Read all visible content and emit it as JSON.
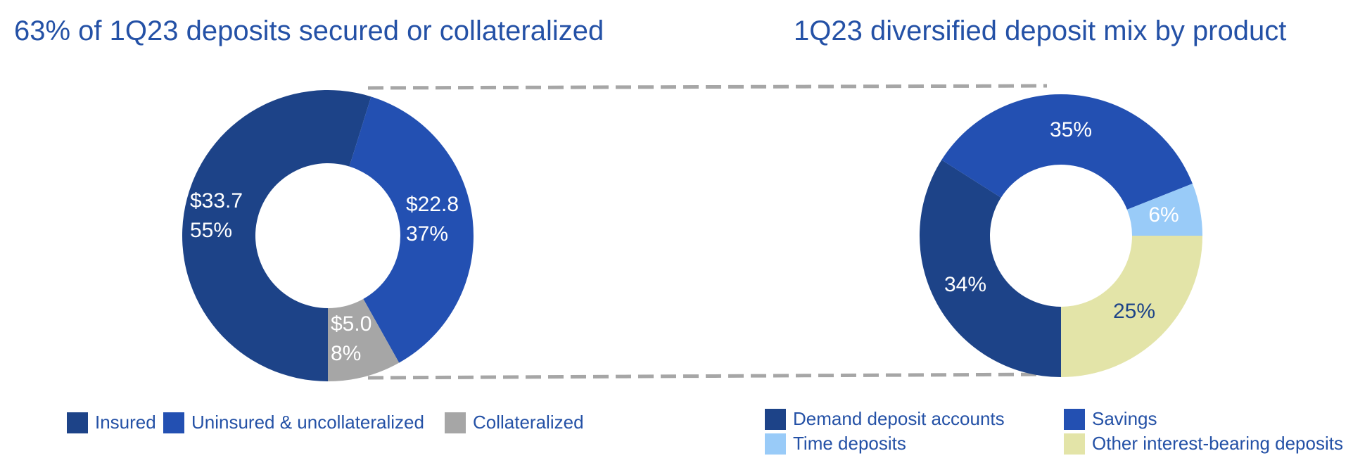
{
  "chart_data": [
    {
      "type": "pie",
      "donut": true,
      "title": "63% of 1Q23 deposits secured or collateralized",
      "slices": [
        {
          "name": "Insured",
          "value": 33.7,
          "value_label": "$33.7",
          "percent": 55,
          "percent_label": "55%",
          "color": "#1d4388",
          "label_color": "#ffffff"
        },
        {
          "name": "Uninsured & uncollateralized",
          "value": 22.8,
          "value_label": "$22.8",
          "percent": 37,
          "percent_label": "37%",
          "color": "#2350b2",
          "label_color": "#ffffff"
        },
        {
          "name": "Collateralized",
          "value": 5.0,
          "value_label": "$5.0",
          "percent": 8,
          "percent_label": "8%",
          "color": "#a6a6a6",
          "label_color": "#ffffff"
        }
      ],
      "legend_position": "bottom"
    },
    {
      "type": "pie",
      "donut": true,
      "title": "1Q23 diversified deposit mix by product",
      "slices": [
        {
          "name": "Demand deposit accounts",
          "percent": 34,
          "percent_label": "34%",
          "color": "#1d4388",
          "label_color": "#ffffff"
        },
        {
          "name": "Savings",
          "percent": 35,
          "percent_label": "35%",
          "color": "#2350b2",
          "label_color": "#ffffff"
        },
        {
          "name": "Time deposits",
          "percent": 6,
          "percent_label": "6%",
          "color": "#99cbf8",
          "label_color": "#ffffff"
        },
        {
          "name": "Other interest-bearing deposits",
          "percent": 25,
          "percent_label": "25%",
          "color": "#e3e4a8",
          "label_color": "#1d4388"
        }
      ],
      "legend_position": "bottom"
    }
  ],
  "colors": {
    "title": "#2451a6",
    "connector": "#a6a6a6"
  }
}
